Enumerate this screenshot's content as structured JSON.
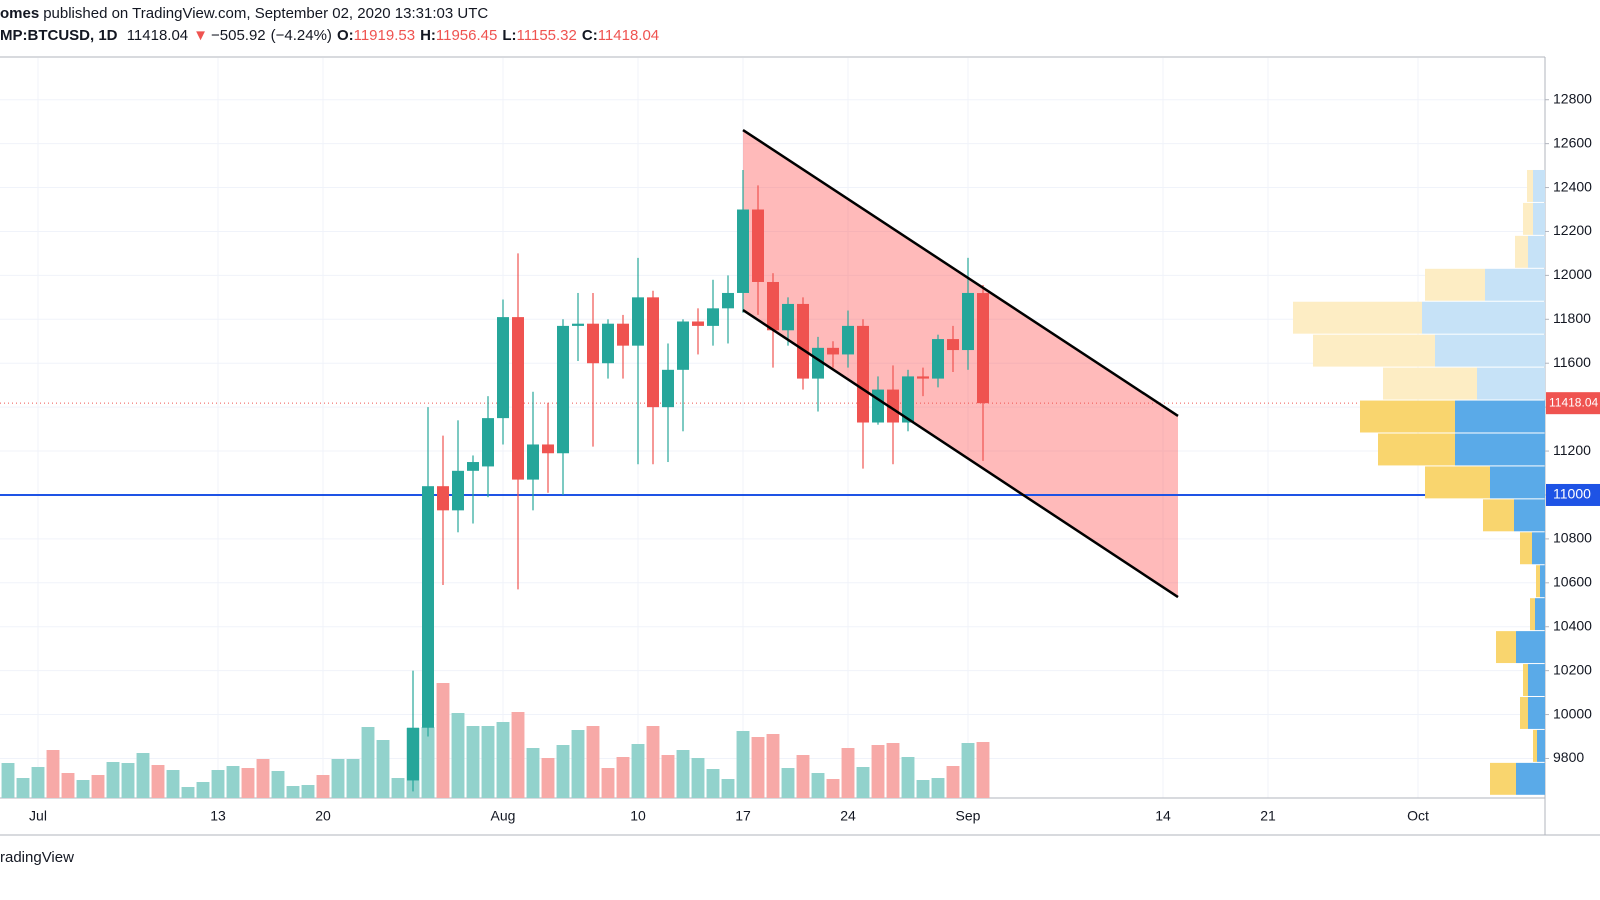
{
  "chart_data": {
    "type": "candlestick",
    "header": {
      "author": "omes",
      "text": "published on TradingView.com, September 02, 2020 13:31:03 UTC",
      "symbol": "MP:BTCUSD, 1D",
      "direction_symbol": "▼",
      "change": {
        "value": -505.92,
        "label": "−505.92"
      },
      "change_pct": {
        "value": -4.24,
        "label": "(−4.24%)"
      },
      "ohlc_labels": [
        "O:",
        "H:",
        "L:",
        "C:"
      ]
    },
    "footer": "radingView",
    "up_color": "#26a69a",
    "down_color": "#ef5350",
    "candles": {
      "x": [
        "2020-07-26",
        "2020-07-27",
        "2020-07-28",
        "2020-07-29",
        "2020-07-30",
        "2020-07-31",
        "2020-08-01",
        "2020-08-02",
        "2020-08-03",
        "2020-08-04",
        "2020-08-05",
        "2020-08-06",
        "2020-08-07",
        "2020-08-08",
        "2020-08-09",
        "2020-08-10",
        "2020-08-11",
        "2020-08-12",
        "2020-08-13",
        "2020-08-14",
        "2020-08-15",
        "2020-08-16",
        "2020-08-17",
        "2020-08-18",
        "2020-08-19",
        "2020-08-20",
        "2020-08-21",
        "2020-08-22",
        "2020-08-23",
        "2020-08-24",
        "2020-08-25",
        "2020-08-26",
        "2020-08-27",
        "2020-08-28",
        "2020-08-29",
        "2020-08-30",
        "2020-08-31",
        "2020-09-01",
        "2020-09-02"
      ],
      "open": [
        9700,
        9940,
        11040,
        10930,
        11110,
        11130,
        11350,
        11810,
        11070,
        11230,
        11190,
        11770,
        11780,
        11600,
        11780,
        11680,
        11900,
        11400,
        11570,
        11790,
        11770,
        11850,
        11920,
        12300,
        11970,
        11750,
        11870,
        11530,
        11670,
        11640,
        11770,
        11330,
        11480,
        11330,
        11540,
        11530,
        11710,
        11660,
        11919.53
      ],
      "high": [
        10200,
        11400,
        11270,
        11340,
        11180,
        11450,
        11890,
        12100,
        11470,
        11420,
        11800,
        11920,
        11920,
        11800,
        11820,
        12080,
        11930,
        11690,
        11800,
        11850,
        11980,
        12000,
        12480,
        12410,
        12010,
        11900,
        11900,
        11720,
        11700,
        11840,
        11800,
        11540,
        11590,
        11570,
        11580,
        11730,
        11770,
        12080,
        11956.45
      ],
      "low": [
        9650,
        9900,
        10590,
        10830,
        10870,
        10990,
        11230,
        10570,
        10930,
        11010,
        11000,
        11610,
        11220,
        11530,
        11530,
        11140,
        11140,
        11150,
        11290,
        11640,
        11680,
        11690,
        11830,
        11820,
        11580,
        11680,
        11480,
        11380,
        11580,
        11580,
        11120,
        11320,
        11140,
        11290,
        11450,
        11490,
        11560,
        11570,
        11155.32
      ],
      "close": [
        9940,
        11040,
        10930,
        11110,
        11150,
        11350,
        11810,
        11070,
        11230,
        11190,
        11770,
        11780,
        11600,
        11780,
        11680,
        11900,
        11400,
        11570,
        11790,
        11770,
        11850,
        11920,
        12300,
        11970,
        11750,
        11870,
        11530,
        11670,
        11640,
        11770,
        11330,
        11480,
        11330,
        11540,
        11530,
        11710,
        11660,
        11920,
        11418.04
      ]
    },
    "volume": {
      "x": [
        "2020-06-29",
        "2020-06-30",
        "2020-07-01",
        "2020-07-02",
        "2020-07-03",
        "2020-07-04",
        "2020-07-05",
        "2020-07-06",
        "2020-07-07",
        "2020-07-08",
        "2020-07-09",
        "2020-07-10",
        "2020-07-11",
        "2020-07-12",
        "2020-07-13",
        "2020-07-14",
        "2020-07-15",
        "2020-07-16",
        "2020-07-17",
        "2020-07-18",
        "2020-07-19",
        "2020-07-20",
        "2020-07-21",
        "2020-07-22",
        "2020-07-23",
        "2020-07-24",
        "2020-07-25",
        "2020-07-26",
        "2020-07-27",
        "2020-07-28",
        "2020-07-29",
        "2020-07-30",
        "2020-07-31",
        "2020-08-01",
        "2020-08-02",
        "2020-08-03",
        "2020-08-04",
        "2020-08-05",
        "2020-08-06",
        "2020-08-07",
        "2020-08-08",
        "2020-08-09",
        "2020-08-10",
        "2020-08-11",
        "2020-08-12",
        "2020-08-13",
        "2020-08-14",
        "2020-08-15",
        "2020-08-16",
        "2020-08-17",
        "2020-08-18",
        "2020-08-19",
        "2020-08-20",
        "2020-08-21",
        "2020-08-22",
        "2020-08-23",
        "2020-08-24",
        "2020-08-25",
        "2020-08-26",
        "2020-08-27",
        "2020-08-28",
        "2020-08-29",
        "2020-08-30",
        "2020-08-31",
        "2020-09-01",
        "2020-09-02"
      ],
      "values": [
        35,
        20,
        31,
        48,
        25,
        18,
        23,
        36,
        35,
        45,
        33,
        28,
        11,
        16,
        28,
        32,
        30,
        39,
        27,
        12,
        13,
        23,
        39,
        39,
        71,
        58,
        20,
        70,
        71,
        115,
        85,
        72,
        72,
        76,
        86,
        50,
        40,
        53,
        68,
        72,
        30,
        41,
        54,
        72,
        43,
        48,
        40,
        29,
        19,
        67,
        61,
        64,
        30,
        43,
        25,
        19,
        50,
        31,
        53,
        55,
        41,
        18,
        20,
        32,
        55,
        56
      ],
      "direction": [
        "up",
        "up",
        "up",
        "down",
        "down",
        "up",
        "down",
        "up",
        "up",
        "up",
        "down",
        "up",
        "up",
        "up",
        "up",
        "up",
        "down",
        "down",
        "up",
        "up",
        "up",
        "down",
        "up",
        "up",
        "up",
        "up",
        "up",
        "up",
        "up",
        "down",
        "up",
        "up",
        "up",
        "up",
        "down",
        "up",
        "down",
        "up",
        "up",
        "down",
        "down",
        "down",
        "up",
        "down",
        "down",
        "up",
        "up",
        "up",
        "up",
        "up",
        "down",
        "down",
        "up",
        "down",
        "up",
        "down",
        "down",
        "up",
        "down",
        "down",
        "up",
        "up",
        "up",
        "down",
        "up",
        "down"
      ],
      "up_color": "#92d2cc",
      "down_color": "#f7a9a7"
    },
    "volume_profile": {
      "bins": [
        9630,
        9780,
        9930,
        10080,
        10230,
        10380,
        10530,
        10680,
        10830,
        10980,
        11130,
        11280,
        11430,
        11580,
        11730,
        11880,
        12030,
        12180,
        12330,
        12480
      ],
      "up": [
        29,
        8,
        17,
        17,
        29,
        10,
        5,
        13,
        31,
        55,
        90,
        90,
        68,
        110,
        123,
        60,
        17,
        12,
        12
      ],
      "down": [
        26,
        4,
        8,
        5,
        20,
        5,
        4,
        12,
        31,
        65,
        77,
        95,
        94,
        122,
        129,
        60,
        13,
        10,
        6
      ],
      "up_colors": [
        "#5aaae8",
        "#5aaae8",
        "#5aaae8",
        "#5aaae8",
        "#5aaae8",
        "#5aaae8",
        "#5aaae8",
        "#5aaae8",
        "#5aaae8",
        "#5aaae8",
        "#5aaae8",
        "#5aaae8",
        "#c6e2f7",
        "#c6e2f7",
        "#c6e2f7",
        "#c6e2f7",
        "#c6e2f7",
        "#c6e2f7",
        "#c6e2f7"
      ],
      "down_colors": [
        "#f9d56e",
        "#f9d56e",
        "#f9d56e",
        "#f9d56e",
        "#f9d56e",
        "#f9d56e",
        "#f9d56e",
        "#f9d56e",
        "#f9d56e",
        "#f9d56e",
        "#f9d56e",
        "#f9d56e",
        "#fdedc4",
        "#fdedc4",
        "#fdedc4",
        "#fdedc4",
        "#fdedc4",
        "#fdedc4",
        "#fdedc4"
      ]
    },
    "channel": {
      "x": [
        "2020-08-17",
        "2020-09-15"
      ],
      "upper": [
        12662,
        11360
      ],
      "lower": [
        11842,
        10535
      ],
      "color": "#ff5252"
    },
    "hline": {
      "value": 11000,
      "color": "#1e53e5"
    },
    "xlim": [
      "2020-06-29",
      "2020-10-10"
    ],
    "xticks": [
      {
        "value": "2020-07-01",
        "label": "Jul"
      },
      {
        "value": "2020-07-13",
        "label": "13"
      },
      {
        "value": "2020-07-20",
        "label": "20"
      },
      {
        "value": "2020-08-01",
        "label": "Aug"
      },
      {
        "value": "2020-08-10",
        "label": "10"
      },
      {
        "value": "2020-08-17",
        "label": "17"
      },
      {
        "value": "2020-08-24",
        "label": "24"
      },
      {
        "value": "2020-09-01",
        "label": "Sep"
      },
      {
        "value": "2020-09-14",
        "label": "14"
      },
      {
        "value": "2020-09-21",
        "label": "21"
      },
      {
        "value": "2020-10-01",
        "label": "Oct"
      }
    ],
    "ylim": [
      9620,
      12990
    ],
    "yticks": [
      9800,
      10000,
      10200,
      10400,
      10600,
      10800,
      11000,
      11200,
      11400,
      11600,
      11800,
      12000,
      12200,
      12400,
      12600,
      12800
    ],
    "grid": true
  }
}
